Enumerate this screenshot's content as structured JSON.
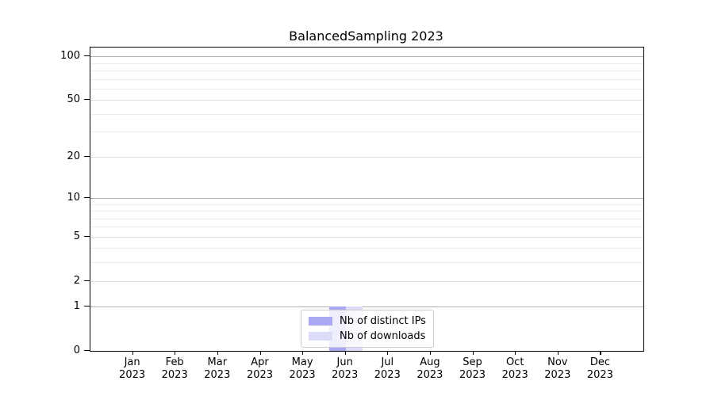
{
  "chart_data": {
    "type": "bar",
    "title": "BalancedSampling 2023",
    "categories": [
      "Jan 2023",
      "Feb 2023",
      "Mar 2023",
      "Apr 2023",
      "May 2023",
      "Jun 2023",
      "Jul 2023",
      "Aug 2023",
      "Sep 2023",
      "Oct 2023",
      "Nov 2023",
      "Dec 2023"
    ],
    "series": [
      {
        "name": "Nb of distinct IPs",
        "color": "#a9a9f3",
        "values": [
          0,
          0,
          0,
          0,
          0,
          1,
          0,
          0,
          0,
          0,
          0,
          0
        ]
      },
      {
        "name": "Nb of downloads",
        "color": "#dcdcf8",
        "values": [
          0,
          0,
          0,
          0,
          0,
          1,
          0,
          0,
          0,
          0,
          0,
          0
        ]
      }
    ],
    "xlabel": "",
    "ylabel": "",
    "yscale": "log10(y+1)",
    "ylim": [
      0,
      115
    ],
    "ytick_values": [
      0,
      1,
      2,
      5,
      10,
      20,
      50,
      100
    ],
    "ytick_labels": [
      "0",
      "1",
      "2",
      "5",
      "10",
      "20",
      "50",
      "100"
    ],
    "major_grid_values": [
      1,
      10,
      100
    ],
    "labeled_grid_values": [
      2,
      5,
      20,
      50
    ],
    "minor_grid_values": [
      3,
      4,
      6,
      7,
      8,
      9,
      30,
      40,
      60,
      70,
      80,
      90
    ],
    "grid": true,
    "legend_position": "lower center",
    "colors": {
      "major_grid": "#b0b0b0",
      "labeled_grid": "#e4e4e4",
      "minor_grid": "#ededed",
      "spine": "#000000"
    }
  }
}
